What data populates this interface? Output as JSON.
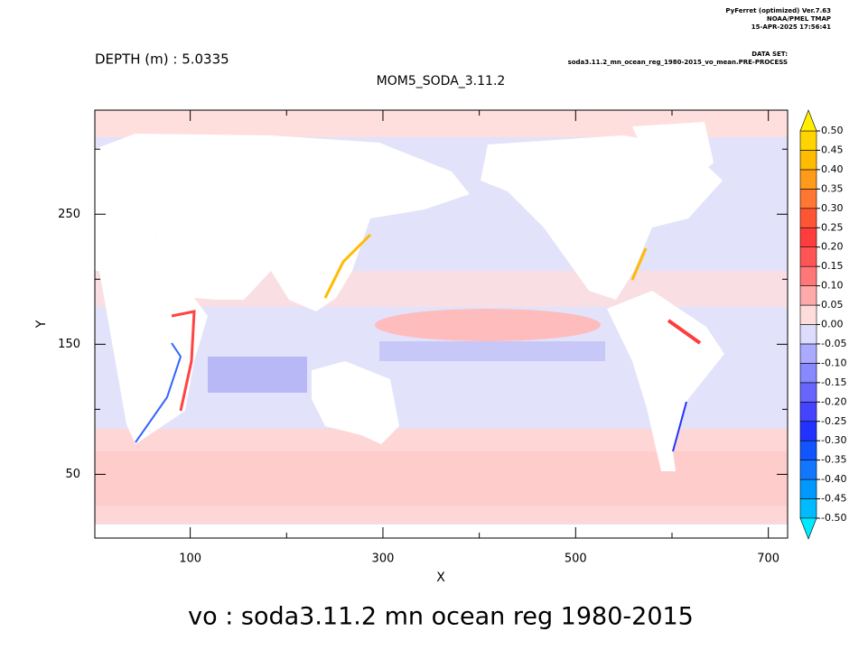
{
  "chart_data": {
    "type": "heatmap",
    "header": [
      "PyFerret (optimized) Ver.7.63",
      "NOAA/PMEL TMAP",
      "15-APR-2025 17:56:41"
    ],
    "dataset_label": "DATA SET:",
    "dataset": "soda3.11.2_mn_ocean_reg_1980-2015_vo_mean.PRE-PROCESS",
    "subtitle": "DEPTH (m) : 5.0335",
    "title": "MOM5_SODA_3.11.2",
    "xlabel": "X",
    "ylabel": "Y",
    "caption": "vo : soda3.11.2 mn ocean reg 1980-2015",
    "xlim": [
      1,
      720
    ],
    "ylim": [
      1,
      330
    ],
    "xticks": [
      100,
      300,
      500,
      700
    ],
    "xminor_ticks": [
      200,
      400,
      600
    ],
    "yticks": [
      50,
      150,
      250
    ],
    "yminor_ticks": [
      100,
      200,
      300
    ],
    "colorbar": {
      "levels": [
        {
          "value": -0.5,
          "label": "-0.50"
        },
        {
          "value": -0.45,
          "label": "-0.45"
        },
        {
          "value": -0.4,
          "label": "-0.40"
        },
        {
          "value": -0.35,
          "label": "-0.35"
        },
        {
          "value": -0.3,
          "label": "-0.30"
        },
        {
          "value": -0.25,
          "label": "-0.25"
        },
        {
          "value": -0.2,
          "label": "-0.20"
        },
        {
          "value": -0.15,
          "label": "-0.15"
        },
        {
          "value": -0.1,
          "label": "-0.10"
        },
        {
          "value": -0.05,
          "label": "-0.05"
        },
        {
          "value": 0,
          "label": "0.00"
        },
        {
          "value": 0.05,
          "label": "0.05"
        },
        {
          "value": 0.1,
          "label": "0.10"
        },
        {
          "value": 0.15,
          "label": "0.15"
        },
        {
          "value": 0.2,
          "label": "0.20"
        },
        {
          "value": 0.25,
          "label": "0.25"
        },
        {
          "value": 0.3,
          "label": "0.30"
        },
        {
          "value": 0.35,
          "label": "0.35"
        },
        {
          "value": 0.4,
          "label": "0.40"
        },
        {
          "value": 0.45,
          "label": "0.45"
        },
        {
          "value": 0.5,
          "label": "0.50"
        }
      ],
      "colors": [
        "#00bbff",
        "#0099ff",
        "#1177ff",
        "#1155ff",
        "#2233ff",
        "#4444ff",
        "#6666ff",
        "#8888ff",
        "#aaaaff",
        "#dcdcfc",
        "#ffdcdc",
        "#ffaaaa",
        "#ff7777",
        "#ff5555",
        "#ff3d3d",
        "#ff5533",
        "#ff7733",
        "#ff9a1a",
        "#ffbb00",
        "#ffd400"
      ],
      "under_color": "#00eaff",
      "over_color": "#ffee00"
    }
  }
}
